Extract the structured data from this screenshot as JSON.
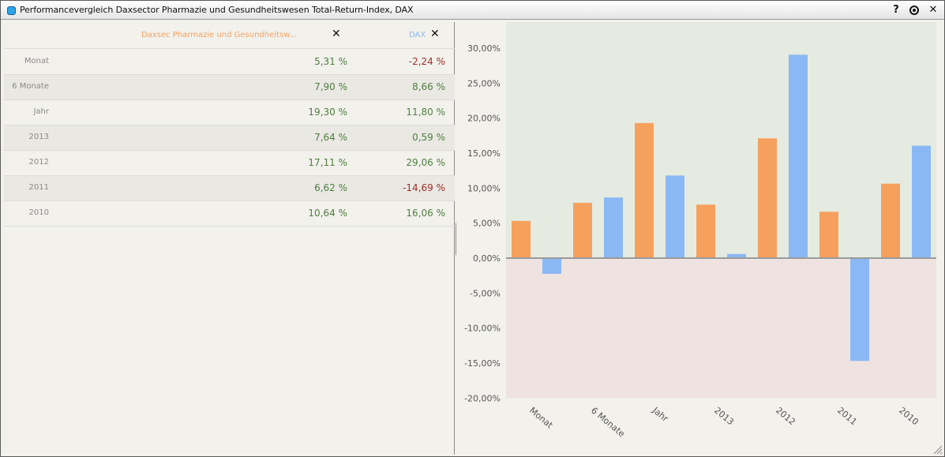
{
  "window": {
    "title": "Performancevergleich Daxsector Pharmazie und Gesundheitswesen Total-Return-Index, DAX",
    "help_label": "?",
    "close_label": "✕"
  },
  "table": {
    "series1_name": "Daxsec Pharmazie und Gesundheitsw...",
    "series2_name": "DAX",
    "remove_label": "✕",
    "rows": [
      {
        "label": "Monat",
        "v1": "5,31 %",
        "v2": "-2,24 %"
      },
      {
        "label": "6 Monate",
        "v1": "7,90 %",
        "v2": "8,66 %"
      },
      {
        "label": "Jahr",
        "v1": "19,30 %",
        "v2": "11,80 %"
      },
      {
        "label": "2013",
        "v1": "7,64 %",
        "v2": "0,59 %"
      },
      {
        "label": "2012",
        "v1": "17,11 %",
        "v2": "29,06 %"
      },
      {
        "label": "2011",
        "v1": "6,62 %",
        "v2": "-14,69 %"
      },
      {
        "label": "2010",
        "v1": "10,64 %",
        "v2": "16,06 %"
      }
    ]
  },
  "colors": {
    "positive": "#4f7f3e",
    "negative": "#a02d26",
    "series1": "#f6a05e",
    "series2": "#8ab8f5",
    "positive_bg": "#e5ebe0",
    "negative_bg": "#eee3e0"
  },
  "chart_data": {
    "type": "bar",
    "categories": [
      "Monat",
      "6 Monate",
      "Jahr",
      "2013",
      "2012",
      "2011",
      "2010"
    ],
    "series": [
      {
        "values": [
          5.31,
          7.9,
          19.3,
          7.64,
          17.11,
          6.62,
          10.64
        ]
      },
      {
        "values": [
          -2.24,
          8.66,
          11.8,
          0.59,
          29.06,
          -14.69,
          16.06
        ]
      }
    ],
    "ylim": [
      -20,
      30
    ],
    "yticks": [
      "30,00%",
      "25,00%",
      "20,00%",
      "15,00%",
      "10,00%",
      "5,00%",
      "0,00%",
      "-5,00%",
      "-10,00%",
      "-15,00%",
      "-20,00%"
    ],
    "grid": false
  }
}
